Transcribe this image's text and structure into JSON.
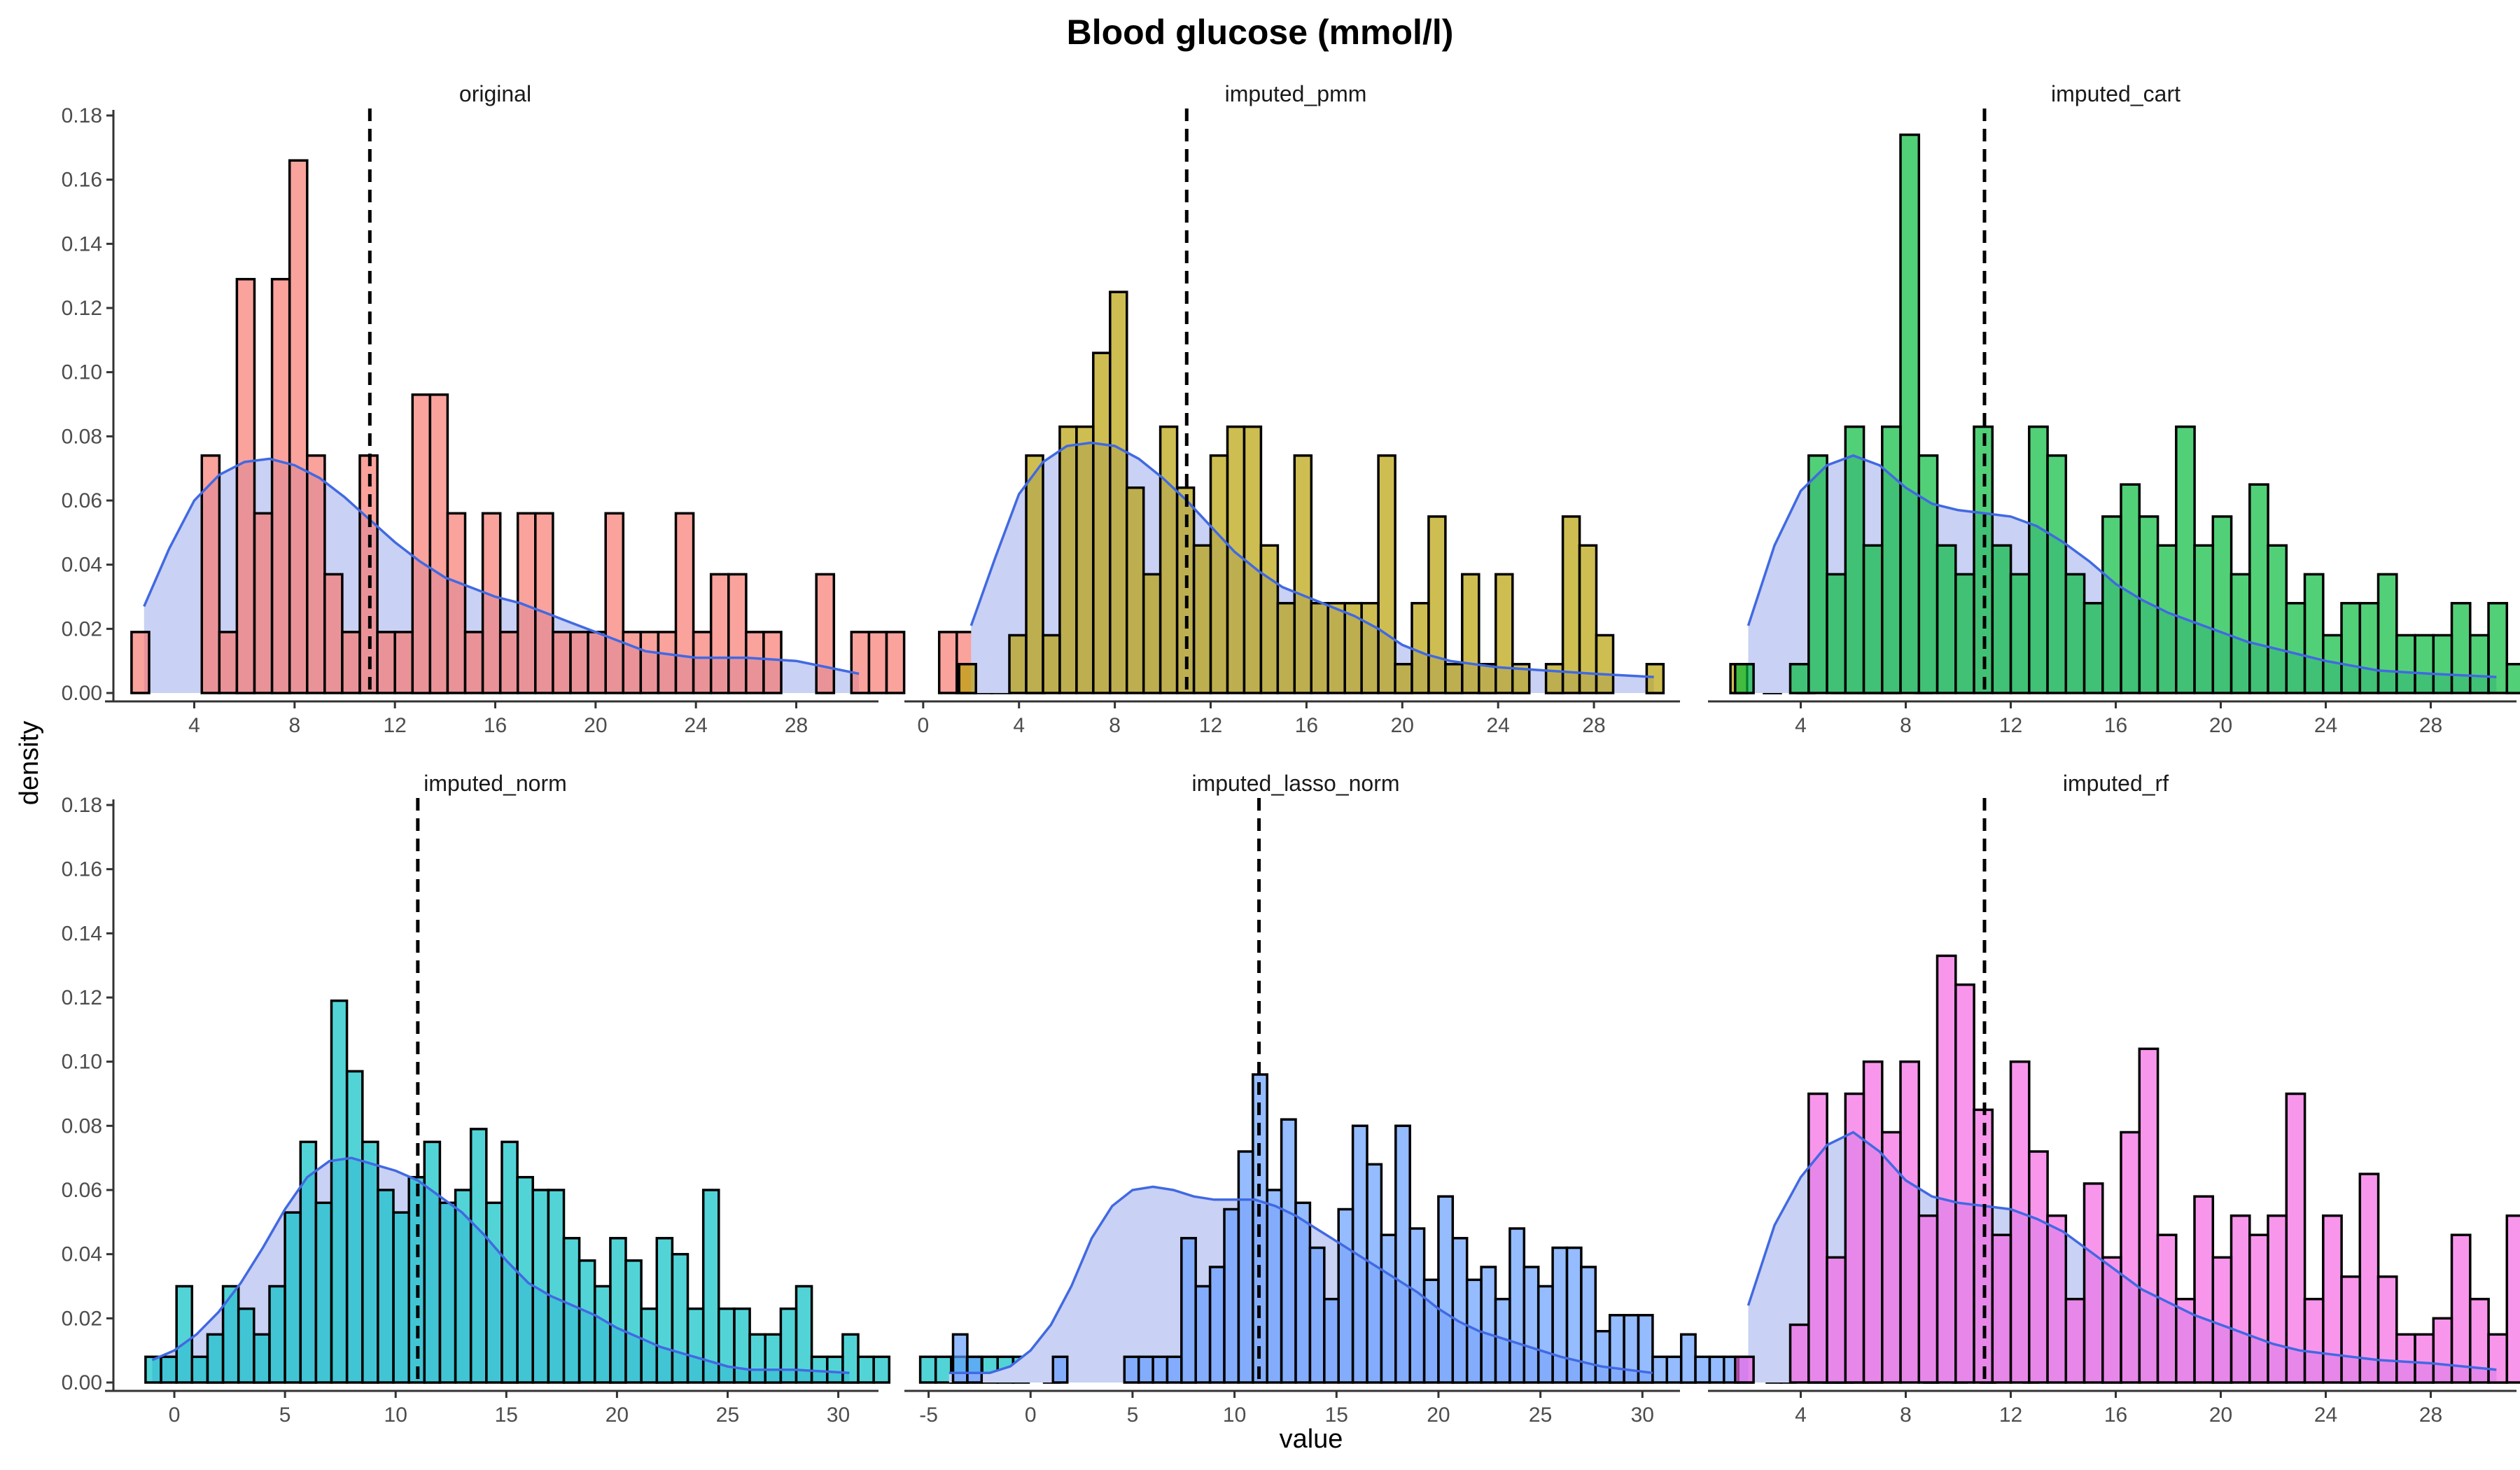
{
  "chart_data": {
    "type": "histogram",
    "title": "Blood glucose (mmol/l)",
    "xlabel": "value",
    "ylabel": "density",
    "grid": false,
    "y_range": [
      0,
      0.18
    ],
    "y_ticks": [
      0.0,
      0.02,
      0.04,
      0.06,
      0.08,
      0.1,
      0.12,
      0.14,
      0.16,
      0.18
    ],
    "y_tick_labels": [
      "0.00",
      "0.02",
      "0.04",
      "0.06",
      "0.08",
      "0.10",
      "0.12",
      "0.14",
      "0.16",
      "0.18"
    ],
    "overlays": {
      "density_line_color": "#4169e1",
      "density_fill_color": "#c9d1f4",
      "reference_line": "dashed vertical line",
      "reference_line_color": "#000000"
    },
    "panels": [
      {
        "name": "original",
        "fill": "#f8766d",
        "x_range": [
          1.0,
          31.0
        ],
        "x_ticks": [
          4,
          8,
          12,
          16,
          20,
          24,
          28
        ],
        "bin_start": 1.5,
        "bin_width": 0.7,
        "density": [
          0.019,
          0,
          0,
          0,
          0.074,
          0.019,
          0.129,
          0.056,
          0.129,
          0.166,
          0.074,
          0.037,
          0.019,
          0.074,
          0.019,
          0.019,
          0.093,
          0.093,
          0.056,
          0.019,
          0.056,
          0.019,
          0.056,
          0.056,
          0.019,
          0.019,
          0.019,
          0.056,
          0.019,
          0.019,
          0.019,
          0.056,
          0.019,
          0.037,
          0.037,
          0.019,
          0.019,
          0,
          0,
          0.037,
          0,
          0.019,
          0.019,
          0.019,
          0,
          0,
          0.019,
          0.019,
          0.019,
          0.019,
          0,
          0.019
        ],
        "kde": [
          [
            2.0,
            0.027
          ],
          [
            3,
            0.045
          ],
          [
            4,
            0.06
          ],
          [
            5,
            0.068
          ],
          [
            6,
            0.072
          ],
          [
            7,
            0.073
          ],
          [
            8,
            0.071
          ],
          [
            9,
            0.067
          ],
          [
            10,
            0.061
          ],
          [
            11,
            0.054
          ],
          [
            12,
            0.047
          ],
          [
            13,
            0.041
          ],
          [
            14,
            0.036
          ],
          [
            15,
            0.033
          ],
          [
            16,
            0.03
          ],
          [
            17,
            0.028
          ],
          [
            18,
            0.025
          ],
          [
            19,
            0.022
          ],
          [
            20,
            0.019
          ],
          [
            21,
            0.016
          ],
          [
            22,
            0.013
          ],
          [
            23,
            0.012
          ],
          [
            24,
            0.011
          ],
          [
            26,
            0.011
          ],
          [
            28,
            0.01
          ],
          [
            30.5,
            0.006
          ]
        ],
        "vline": 11.0
      },
      {
        "name": "imputed_pmm",
        "fill": "#b79f00",
        "x_range": [
          -0.2,
          31.3
        ],
        "x_ticks": [
          0,
          4,
          8,
          12,
          16,
          20,
          24,
          28
        ],
        "bin_start": 1.5,
        "bin_width": 0.7,
        "density": [
          0.009,
          0,
          0,
          0.018,
          0.074,
          0.018,
          0.083,
          0.083,
          0.106,
          0.125,
          0.064,
          0.037,
          0.083,
          0.064,
          0.046,
          0.074,
          0.083,
          0.083,
          0.046,
          0.028,
          0.074,
          0.028,
          0.028,
          0.028,
          0.028,
          0.074,
          0.009,
          0.028,
          0.055,
          0.009,
          0.037,
          0.009,
          0.037,
          0.009,
          0,
          0.009,
          0.055,
          0.046,
          0.018,
          0,
          0,
          0.009,
          0,
          0,
          0,
          0,
          0.009,
          0,
          0.009,
          0,
          0.009,
          0,
          0.018,
          0.009,
          0.009,
          0.009,
          0,
          0.025
        ],
        "kde": [
          [
            2.0,
            0.021
          ],
          [
            3,
            0.042
          ],
          [
            4,
            0.062
          ],
          [
            5,
            0.072
          ],
          [
            6,
            0.077
          ],
          [
            7,
            0.078
          ],
          [
            8,
            0.077
          ],
          [
            9,
            0.073
          ],
          [
            10,
            0.067
          ],
          [
            11,
            0.06
          ],
          [
            12,
            0.052
          ],
          [
            13,
            0.044
          ],
          [
            14,
            0.038
          ],
          [
            15,
            0.033
          ],
          [
            16,
            0.03
          ],
          [
            17,
            0.027
          ],
          [
            18,
            0.024
          ],
          [
            19,
            0.02
          ],
          [
            20,
            0.015
          ],
          [
            21,
            0.012
          ],
          [
            22,
            0.01
          ],
          [
            23,
            0.009
          ],
          [
            24,
            0.008
          ],
          [
            26,
            0.007
          ],
          [
            28,
            0.006
          ],
          [
            30.5,
            0.005
          ]
        ],
        "vline": 11.0
      },
      {
        "name": "imputed_cart",
        "fill": "#00ba38",
        "x_range": [
          1.0,
          31.0
        ],
        "x_ticks": [
          4,
          8,
          12,
          16,
          20,
          24,
          28
        ],
        "bin_start": 1.5,
        "bin_width": 0.7,
        "density": [
          0.009,
          0,
          0,
          0.009,
          0.074,
          0.037,
          0.083,
          0.046,
          0.083,
          0.174,
          0.074,
          0.046,
          0.037,
          0.083,
          0.046,
          0.037,
          0.083,
          0.074,
          0.037,
          0.028,
          0.055,
          0.065,
          0.055,
          0.046,
          0.083,
          0.046,
          0.055,
          0.037,
          0.065,
          0.046,
          0.028,
          0.037,
          0.018,
          0.028,
          0.028,
          0.037,
          0.018,
          0.018,
          0.018,
          0.028,
          0.018,
          0.028,
          0.009,
          0.009,
          0,
          0.009,
          0,
          0.009,
          0,
          0.009,
          0,
          0.009,
          0.009
        ],
        "kde": [
          [
            2.0,
            0.021
          ],
          [
            3,
            0.046
          ],
          [
            4,
            0.063
          ],
          [
            5,
            0.071
          ],
          [
            6,
            0.074
          ],
          [
            7,
            0.071
          ],
          [
            8,
            0.064
          ],
          [
            9,
            0.059
          ],
          [
            10,
            0.057
          ],
          [
            11,
            0.056
          ],
          [
            12,
            0.055
          ],
          [
            13,
            0.052
          ],
          [
            14,
            0.047
          ],
          [
            15,
            0.041
          ],
          [
            16,
            0.034
          ],
          [
            17,
            0.029
          ],
          [
            18,
            0.025
          ],
          [
            19,
            0.022
          ],
          [
            20,
            0.019
          ],
          [
            21,
            0.016
          ],
          [
            22,
            0.014
          ],
          [
            23,
            0.012
          ],
          [
            24,
            0.01
          ],
          [
            26,
            0.007
          ],
          [
            28,
            0.006
          ],
          [
            30.5,
            0.005
          ]
        ],
        "vline": 11.0
      },
      {
        "name": "imputed_norm",
        "fill": "#00bfc4",
        "x_range": [
          -2.5,
          31.5
        ],
        "x_ticks": [
          0,
          5,
          10,
          15,
          20,
          25,
          30
        ],
        "bin_start": -1.3,
        "bin_width": 0.7,
        "density": [
          0.008,
          0.008,
          0.03,
          0.008,
          0.015,
          0.03,
          0.023,
          0.015,
          0.03,
          0.053,
          0.075,
          0.056,
          0.119,
          0.097,
          0.075,
          0.06,
          0.053,
          0.064,
          0.075,
          0.056,
          0.06,
          0.079,
          0.056,
          0.075,
          0.064,
          0.06,
          0.06,
          0.045,
          0.038,
          0.03,
          0.045,
          0.038,
          0.023,
          0.045,
          0.04,
          0.023,
          0.06,
          0.023,
          0.023,
          0.015,
          0.015,
          0.023,
          0.03,
          0.008,
          0.008,
          0.015,
          0.008,
          0.008,
          0,
          0,
          0.008,
          0.008,
          0.008,
          0.008,
          0.008,
          0.008,
          0.008,
          0,
          0.008
        ],
        "kde": [
          [
            -1.0,
            0.007
          ],
          [
            0,
            0.01
          ],
          [
            1,
            0.015
          ],
          [
            2,
            0.022
          ],
          [
            3,
            0.031
          ],
          [
            4,
            0.042
          ],
          [
            5,
            0.054
          ],
          [
            6,
            0.064
          ],
          [
            7,
            0.069
          ],
          [
            8,
            0.07
          ],
          [
            9,
            0.068
          ],
          [
            10,
            0.066
          ],
          [
            11,
            0.063
          ],
          [
            12,
            0.058
          ],
          [
            13,
            0.053
          ],
          [
            14,
            0.046
          ],
          [
            15,
            0.038
          ],
          [
            16,
            0.031
          ],
          [
            17,
            0.027
          ],
          [
            18,
            0.024
          ],
          [
            19,
            0.021
          ],
          [
            20,
            0.017
          ],
          [
            21,
            0.014
          ],
          [
            22,
            0.011
          ],
          [
            23,
            0.009
          ],
          [
            24,
            0.007
          ],
          [
            25,
            0.005
          ],
          [
            26,
            0.004
          ],
          [
            28,
            0.004
          ],
          [
            30.5,
            0.003
          ]
        ],
        "vline": 11.0
      },
      {
        "name": "imputed_lasso_norm",
        "fill": "#619cff",
        "x_range": [
          -5.5,
          31.5
        ],
        "x_ticks": [
          -5,
          0,
          5,
          10,
          15,
          20,
          25,
          30
        ],
        "bin_start": -3.8,
        "bin_width": 0.7,
        "density": [
          0.015,
          0.008,
          0,
          0,
          0,
          0,
          0,
          0.008,
          0,
          0,
          0,
          0,
          0.008,
          0.008,
          0.008,
          0.008,
          0.045,
          0.03,
          0.036,
          0.054,
          0.072,
          0.096,
          0.06,
          0.082,
          0.056,
          0.042,
          0.026,
          0.054,
          0.08,
          0.068,
          0.046,
          0.08,
          0.048,
          0.032,
          0.058,
          0.045,
          0.032,
          0.036,
          0.026,
          0.048,
          0.036,
          0.03,
          0.042,
          0.042,
          0.036,
          0.016,
          0.021,
          0.021,
          0.021,
          0.008,
          0.008,
          0.015,
          0.008,
          0.008,
          0.008,
          0.008,
          0,
          0.008,
          0.008,
          0,
          0.008,
          0.015,
          0.015,
          0.008,
          0.008,
          0,
          0,
          0,
          0.015,
          0,
          0.008,
          0,
          0.015,
          0,
          0,
          0.008
        ],
        "kde": [
          [
            -4.0,
            0.003
          ],
          [
            -2,
            0.003
          ],
          [
            -1,
            0.005
          ],
          [
            0,
            0.01
          ],
          [
            1,
            0.018
          ],
          [
            2,
            0.03
          ],
          [
            3,
            0.045
          ],
          [
            4,
            0.055
          ],
          [
            5,
            0.06
          ],
          [
            6,
            0.061
          ],
          [
            7,
            0.06
          ],
          [
            8,
            0.058
          ],
          [
            9,
            0.057
          ],
          [
            10,
            0.057
          ],
          [
            11,
            0.057
          ],
          [
            12,
            0.055
          ],
          [
            13,
            0.052
          ],
          [
            14,
            0.048
          ],
          [
            15,
            0.044
          ],
          [
            16,
            0.04
          ],
          [
            17,
            0.036
          ],
          [
            18,
            0.032
          ],
          [
            19,
            0.028
          ],
          [
            20,
            0.023
          ],
          [
            21,
            0.019
          ],
          [
            22,
            0.016
          ],
          [
            23,
            0.014
          ],
          [
            24,
            0.012
          ],
          [
            25,
            0.01
          ],
          [
            26,
            0.008
          ],
          [
            28,
            0.005
          ],
          [
            30.5,
            0.003
          ]
        ],
        "vline": 11.2
      },
      {
        "name": "imputed_rf",
        "fill": "#f564e3",
        "x_range": [
          1.0,
          31.0
        ],
        "x_ticks": [
          4,
          8,
          12,
          16,
          20,
          24,
          28
        ],
        "bin_start": 1.5,
        "bin_width": 0.7,
        "density": [
          0.008,
          0,
          0,
          0.018,
          0.09,
          0.039,
          0.09,
          0.1,
          0.078,
          0.1,
          0.052,
          0.133,
          0.124,
          0.085,
          0.046,
          0.1,
          0.072,
          0.052,
          0.026,
          0.062,
          0.039,
          0.078,
          0.104,
          0.046,
          0.026,
          0.058,
          0.039,
          0.052,
          0.046,
          0.052,
          0.09,
          0.026,
          0.052,
          0.033,
          0.065,
          0.033,
          0.015,
          0.015,
          0.02,
          0.046,
          0.026,
          0.015,
          0.052,
          0.022,
          0.026,
          0.008,
          0,
          0.039,
          0.02,
          0.008,
          0.015,
          0.008,
          0.008,
          0,
          0.008,
          0.008,
          0.008,
          0,
          0.008,
          0.008
        ],
        "kde": [
          [
            2.0,
            0.024
          ],
          [
            3,
            0.049
          ],
          [
            4,
            0.064
          ],
          [
            5,
            0.074
          ],
          [
            6,
            0.078
          ],
          [
            7,
            0.072
          ],
          [
            8,
            0.063
          ],
          [
            9,
            0.058
          ],
          [
            10,
            0.056
          ],
          [
            11,
            0.055
          ],
          [
            12,
            0.054
          ],
          [
            13,
            0.051
          ],
          [
            14,
            0.047
          ],
          [
            15,
            0.041
          ],
          [
            16,
            0.035
          ],
          [
            17,
            0.029
          ],
          [
            18,
            0.025
          ],
          [
            19,
            0.021
          ],
          [
            20,
            0.018
          ],
          [
            21,
            0.015
          ],
          [
            22,
            0.012
          ],
          [
            23,
            0.01
          ],
          [
            24,
            0.009
          ],
          [
            26,
            0.007
          ],
          [
            28,
            0.006
          ],
          [
            30.5,
            0.004
          ]
        ],
        "vline": 11.0
      }
    ]
  }
}
